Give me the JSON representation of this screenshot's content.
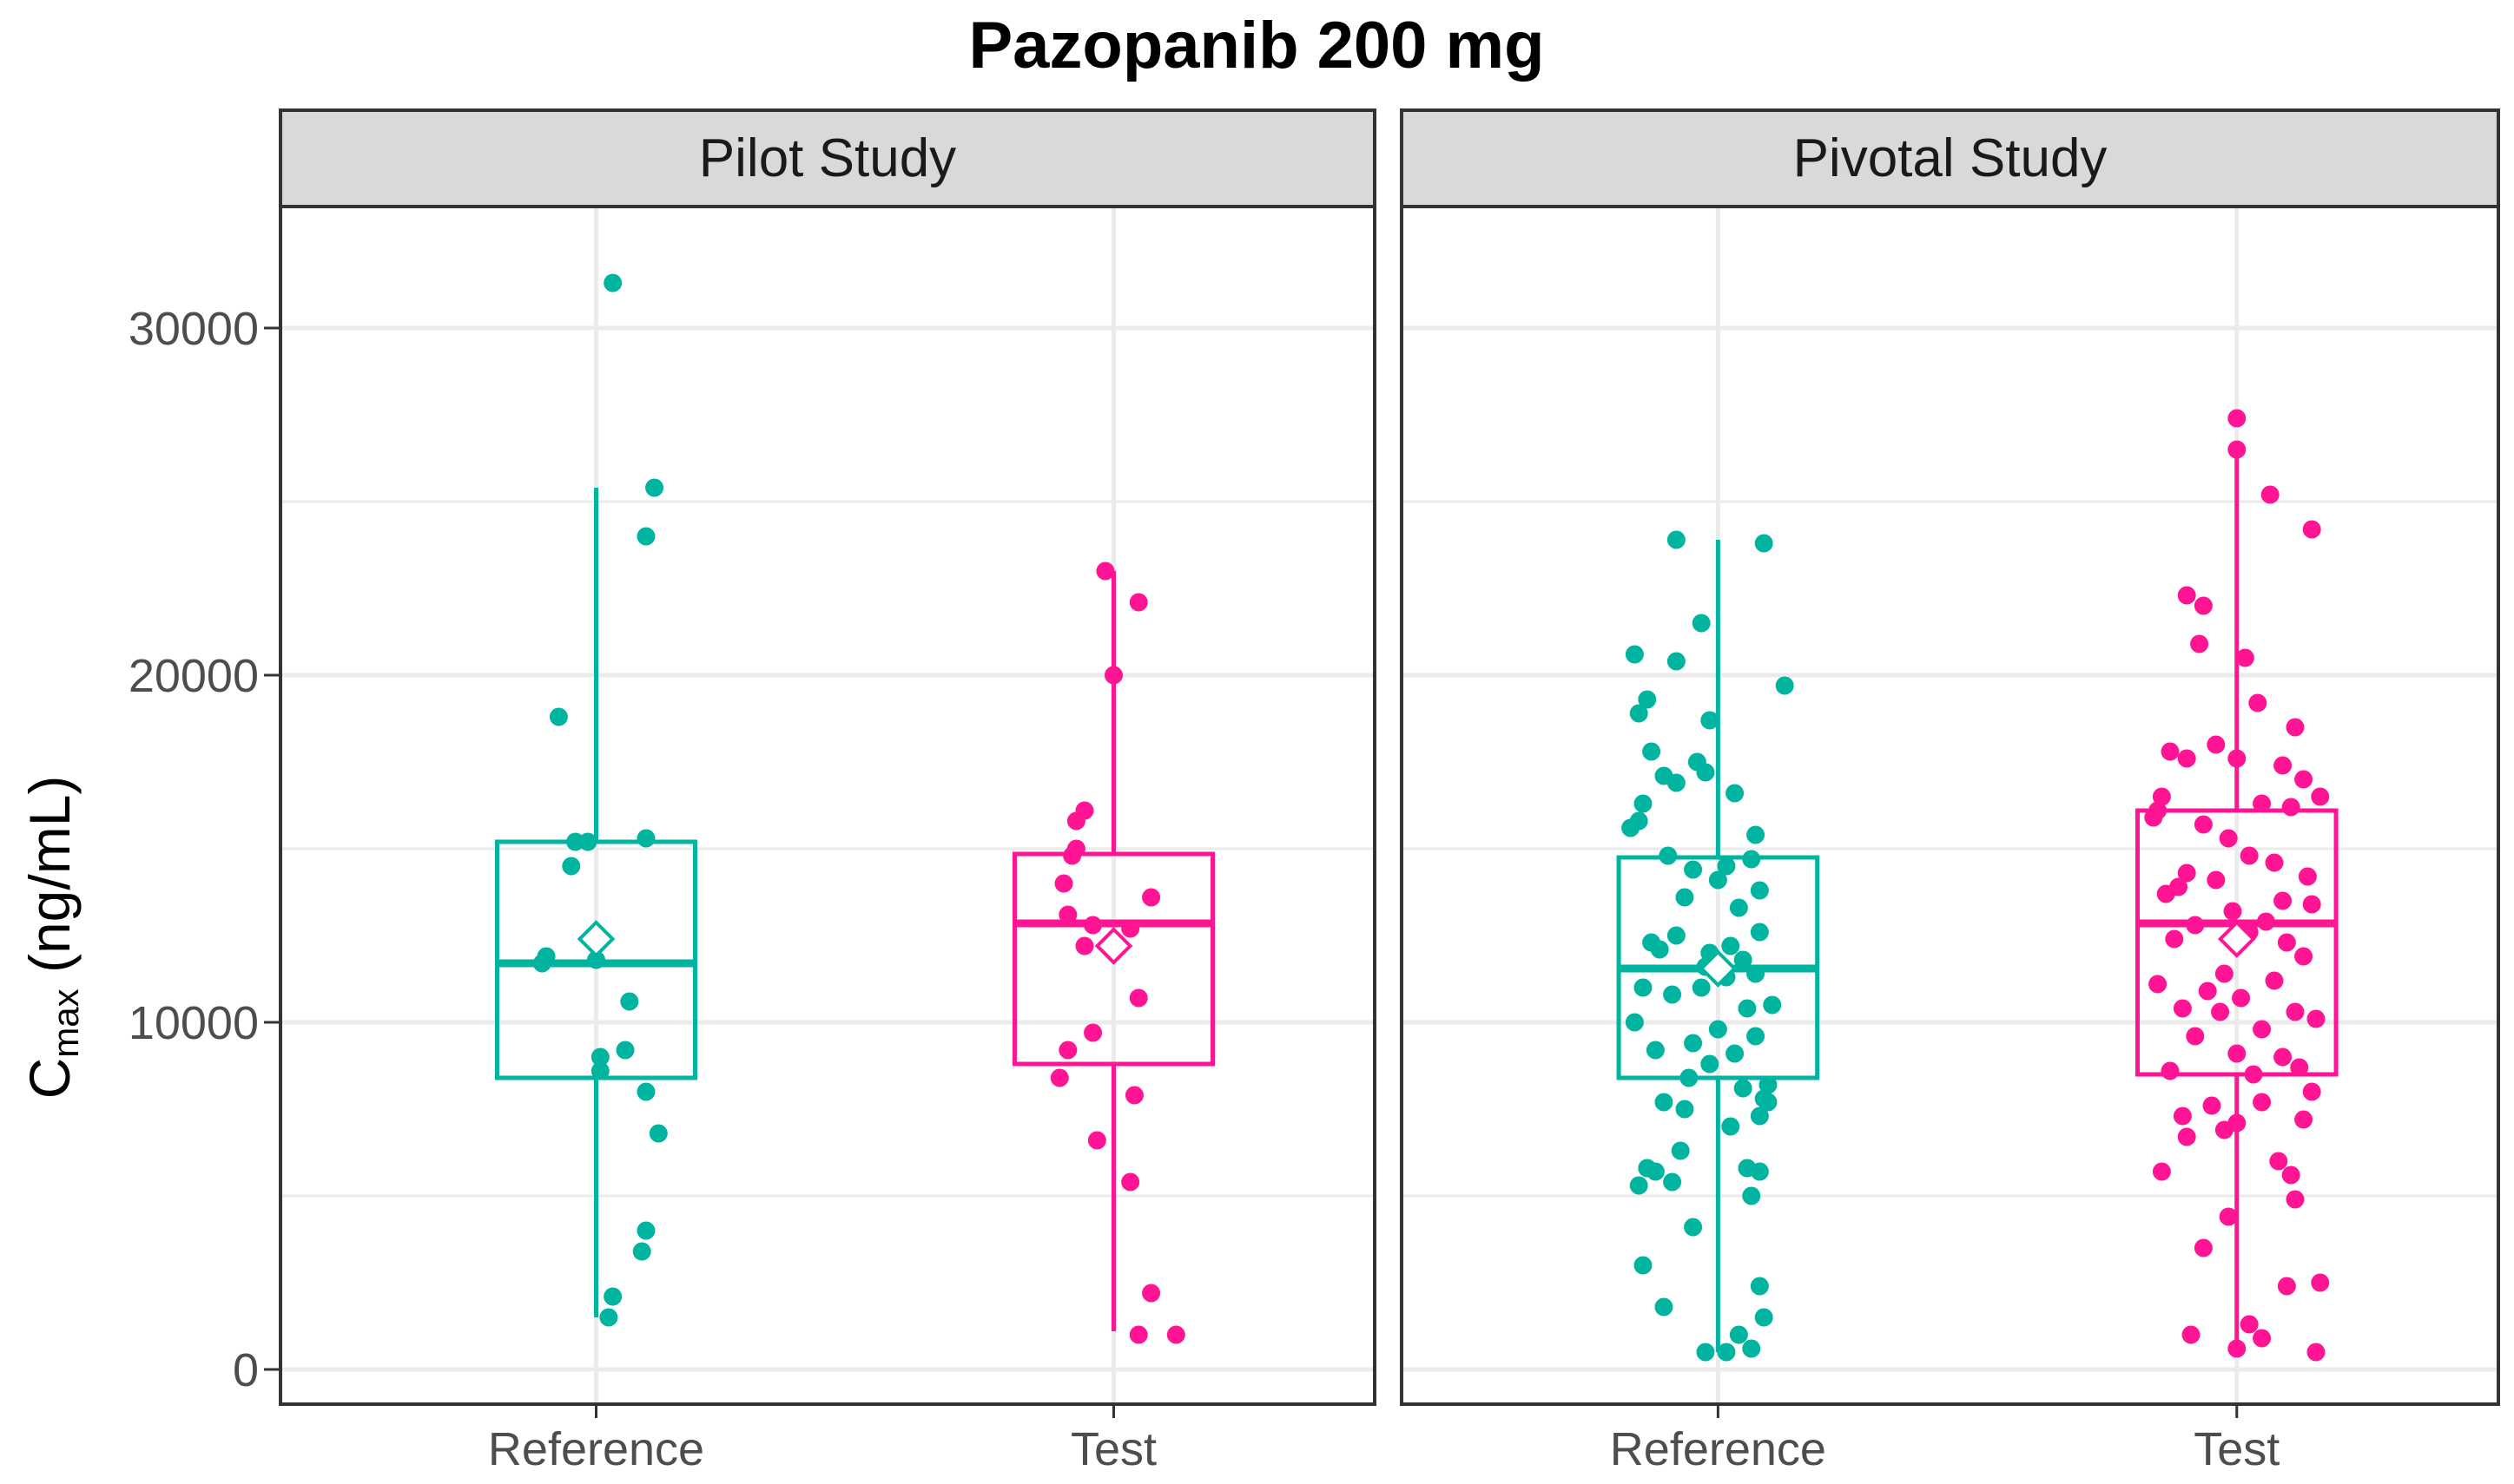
{
  "chart_data": {
    "type": "boxplot",
    "title": "Pazopanib 200 mg",
    "ylabel": {
      "main": "C",
      "subscript": "max",
      "unit": " (ng/mL)"
    },
    "ylim": [
      -1000,
      33500
    ],
    "yticks": [
      0,
      10000,
      20000,
      30000
    ],
    "ytick_labels": [
      "0",
      "10000",
      "20000",
      "30000"
    ],
    "y_minor_gridlines": [
      5000,
      15000,
      25000
    ],
    "categories": [
      "Reference",
      "Test"
    ],
    "colors": {
      "Reference": "#00b4a0",
      "Test": "#ff1493"
    },
    "panels": [
      {
        "label": "Pilot Study",
        "boxes": [
          {
            "category": "Reference",
            "whisker_low": 1500,
            "q1": 8400,
            "median": 11700,
            "q3": 15200,
            "whisker_high": 25400,
            "mean": 12400
          },
          {
            "category": "Test",
            "whisker_low": 1100,
            "q1": 8800,
            "median": 12850,
            "q3": 14850,
            "whisker_high": 23000,
            "mean": 12200
          }
        ],
        "points": [
          {
            "category": "Reference",
            "jitter": [
              0.04,
              -0.12,
              -0.13,
              -0.02,
              -0.06,
              0.14,
              0.12,
              -0.09,
              -0.05,
              0.12,
              0.0,
              0.08,
              0.01,
              0.01,
              0.07,
              0.12,
              0.15,
              0.12,
              0.11,
              0.04,
              0.03
            ],
            "values": [
              31300,
              11900,
              11700,
              15200,
              14500,
              25400,
              24000,
              18800,
              15200,
              15300,
              11800,
              10600,
              9000,
              8600,
              9200,
              8000,
              6800,
              4000,
              3400,
              2100,
              1500
            ]
          },
          {
            "category": "Test",
            "jitter": [
              -0.02,
              0.06,
              0.0,
              -0.09,
              -0.07,
              -0.1,
              -0.11,
              -0.07,
              -0.05,
              0.04,
              0.09,
              0.06,
              -0.05,
              -0.11,
              -0.13,
              -0.12,
              -0.09,
              -0.04,
              0.05,
              0.04,
              0.09,
              0.06,
              0.15
            ],
            "values": [
              23000,
              22100,
              20000,
              15800,
              16100,
              14800,
              13100,
              12200,
              12800,
              12700,
              13600,
              10700,
              9700,
              9200,
              8400,
              14000,
              15000,
              6600,
              7900,
              5400,
              2200,
              1000,
              1000
            ]
          }
        ]
      },
      {
        "label": "Pivotal Study",
        "boxes": [
          {
            "category": "Reference",
            "whisker_low": 500,
            "q1": 8400,
            "median": 11550,
            "q3": 14750,
            "whisker_high": 23900,
            "mean": 11550
          },
          {
            "category": "Test",
            "whisker_low": 600,
            "q1": 8500,
            "median": 12850,
            "q3": 16100,
            "whisker_high": 26400,
            "mean": 12400
          }
        ],
        "points": [
          {
            "category": "Reference",
            "jitter": [
              -0.1,
              0.11,
              -0.2,
              -0.04,
              -0.17,
              -0.19,
              -0.1,
              0.16,
              -0.02,
              -0.16,
              -0.13,
              -0.18,
              -0.05,
              -0.03,
              0.04,
              -0.1,
              -0.19,
              -0.21,
              0.09,
              0.02,
              -0.06,
              0.08,
              0.0,
              -0.12,
              -0.08,
              0.1,
              0.05,
              -0.16,
              -0.1,
              -0.14,
              0.03,
              -0.02,
              0.06,
              0.1,
              -0.03,
              0.02,
              0.09,
              -0.18,
              -0.04,
              -0.11,
              0.13,
              0.07,
              -0.2,
              0.0,
              0.09,
              -0.06,
              -0.15,
              0.04,
              -0.02,
              -0.07,
              0.06,
              0.12,
              -0.13,
              0.11,
              0.12,
              -0.08,
              0.1,
              0.03,
              -0.09,
              0.07,
              -0.17,
              -0.11,
              -0.19,
              -0.15,
              0.1,
              -0.06,
              0.08,
              -0.18,
              0.1,
              0.11,
              -0.13,
              0.05,
              0.02,
              -0.03,
              0.08
            ],
            "values": [
              23900,
              23800,
              20600,
              21500,
              19300,
              18900,
              20400,
              19700,
              18700,
              17800,
              17100,
              16300,
              17500,
              17200,
              16600,
              16900,
              15800,
              15600,
              15400,
              14500,
              14400,
              14700,
              14100,
              14800,
              13600,
              13800,
              13300,
              12300,
              12500,
              12100,
              12200,
              12000,
              11800,
              12600,
              11600,
              11300,
              11400,
              11000,
              11000,
              10800,
              10500,
              10400,
              10000,
              9800,
              9600,
              9400,
              9200,
              9100,
              8800,
              8400,
              8100,
              8200,
              7700,
              7800,
              7700,
              7500,
              7300,
              7000,
              6300,
              5800,
              5800,
              5400,
              5300,
              5700,
              5700,
              4100,
              5000,
              3000,
              2400,
              1500,
              1800,
              1000,
              500,
              500,
              600
            ],
            "note": "approximate"
          },
          {
            "category": "Test",
            "jitter": [
              0.0,
              0.0,
              0.08,
              0.18,
              -0.12,
              -0.08,
              -0.09,
              0.02,
              0.05,
              0.14,
              -0.16,
              -0.12,
              0.11,
              -0.05,
              0.0,
              0.16,
              -0.18,
              -0.19,
              0.2,
              0.06,
              0.13,
              -0.2,
              -0.08,
              -0.02,
              0.03,
              -0.12,
              0.17,
              -0.14,
              0.09,
              -0.05,
              -0.17,
              0.11,
              0.18,
              -0.01,
              -0.1,
              0.03,
              -0.15,
              0.07,
              0.12,
              -0.03,
              0.16,
              -0.19,
              0.09,
              -0.07,
              0.01,
              -0.13,
              0.19,
              0.14,
              -0.04,
              0.06,
              -0.1,
              0.0,
              0.11,
              0.15,
              -0.16,
              0.04,
              0.18,
              0.06,
              -0.06,
              -0.13,
              0.16,
              0.0,
              -0.03,
              -0.12,
              0.1,
              0.13,
              -0.18,
              0.14,
              -0.02,
              -0.08,
              0.12,
              0.2,
              0.03,
              -0.11,
              0.06,
              0.0,
              0.19
            ],
            "values": [
              27400,
              26500,
              25200,
              24200,
              22300,
              22000,
              20900,
              20500,
              19200,
              18500,
              17800,
              17600,
              17400,
              18000,
              17600,
              17000,
              16500,
              16100,
              16500,
              16300,
              16200,
              15900,
              15700,
              15300,
              14800,
              14300,
              14200,
              13900,
              14600,
              14100,
              13700,
              13500,
              13400,
              13200,
              12800,
              12600,
              12400,
              12900,
              12300,
              11400,
              11900,
              11100,
              11200,
              10900,
              10700,
              10400,
              10100,
              10300,
              10300,
              9800,
              9600,
              9100,
              9000,
              8700,
              8600,
              8500,
              8000,
              7700,
              7600,
              7300,
              7200,
              7100,
              6900,
              6700,
              6000,
              5600,
              5700,
              4900,
              4400,
              3500,
              2400,
              2500,
              1300,
              1000,
              900,
              600,
              500
            ],
            "note": "approximate"
          }
        ]
      }
    ]
  }
}
